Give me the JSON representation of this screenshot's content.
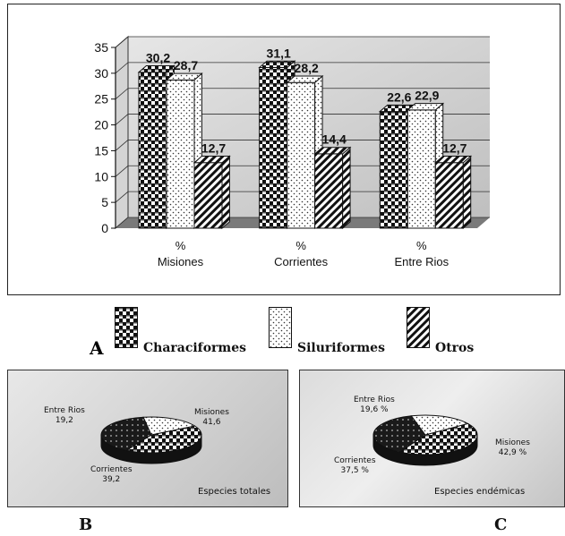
{
  "chart_data": [
    {
      "type": "bar",
      "categories": [
        "% Misiones",
        "% Corrientes",
        "% Entre Rios"
      ],
      "category_lines": [
        [
          "%",
          "Misiones"
        ],
        [
          "%",
          "Corrientes"
        ],
        [
          "%",
          "Entre Rios"
        ]
      ],
      "series": [
        {
          "name": "Characiformes",
          "values": [
            30.2,
            31.1,
            22.6
          ],
          "labels": [
            "30,2",
            "31,1",
            "22,6"
          ],
          "pattern": "checker"
        },
        {
          "name": "Siluriformes",
          "values": [
            28.7,
            28.2,
            22.9
          ],
          "labels": [
            "28,7",
            "28,2",
            "22,9"
          ],
          "pattern": "dots"
        },
        {
          "name": "Otros",
          "values": [
            12.7,
            14.4,
            12.7
          ],
          "labels": [
            "12,7",
            "14,4",
            "12,7"
          ],
          "pattern": "diag"
        }
      ],
      "yticks": [
        "0",
        "5",
        "10",
        "15",
        "20",
        "25",
        "30",
        "35"
      ],
      "ylim": [
        0,
        35
      ],
      "grid": true,
      "legend": "bottom"
    },
    {
      "type": "pie",
      "title": "Especies totales",
      "slices": [
        {
          "label": "Misiones",
          "value": 41.6,
          "value_label": "41,6",
          "pattern": "checker"
        },
        {
          "label": "Corrientes",
          "value": 39.2,
          "value_label": "39,2",
          "pattern": "dark"
        },
        {
          "label": "Entre Rios",
          "value": 19.2,
          "value_label": "19,2",
          "pattern": "dots"
        }
      ]
    },
    {
      "type": "pie",
      "title": "Especies endémicas",
      "slices": [
        {
          "label": "Misiones",
          "value": 42.9,
          "value_label": "42,9 %",
          "pattern": "checker"
        },
        {
          "label": "Corrientes",
          "value": 37.5,
          "value_label": "37,5 %",
          "pattern": "dark"
        },
        {
          "label": "Entre Rios",
          "value": 19.6,
          "value_label": "19,6 %",
          "pattern": "dots"
        }
      ]
    }
  ],
  "figure_tags": {
    "a": "A",
    "b": "B",
    "c": "C"
  },
  "legend": {
    "items": [
      "Characiformes",
      "Siluriformes",
      "Otros"
    ]
  }
}
